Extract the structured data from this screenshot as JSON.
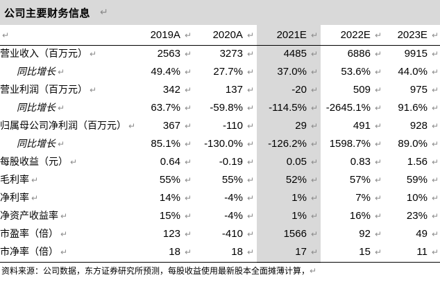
{
  "title": "公司主要财务信息",
  "mark": "↵",
  "header_mark": "↵",
  "columns": [
    "2019A",
    "2020A",
    "2021E",
    "2022E",
    "2023E"
  ],
  "rows": [
    {
      "label": "营业收入（百万元）",
      "sub": false,
      "values": [
        "2563",
        "3273",
        "4485",
        "6886",
        "9915"
      ]
    },
    {
      "label": "同比增长",
      "sub": true,
      "values": [
        "49.4%",
        "27.7%",
        "37.0%",
        "53.6%",
        "44.0%"
      ]
    },
    {
      "label": "营业利润（百万元）",
      "sub": false,
      "values": [
        "342",
        "137",
        "-20",
        "509",
        "975"
      ]
    },
    {
      "label": "同比增长",
      "sub": true,
      "values": [
        "63.7%",
        "-59.8%",
        "-114.5%",
        "-2645.1%",
        "91.6%"
      ]
    },
    {
      "label": "归属母公司净利润（百万元）",
      "sub": false,
      "values": [
        "367",
        "-110",
        "29",
        "491",
        "928"
      ]
    },
    {
      "label": "同比增长",
      "sub": true,
      "values": [
        "85.1%",
        "-130.0%",
        "-126.2%",
        "1598.7%",
        "89.0%"
      ]
    },
    {
      "label": "每股收益（元）",
      "sub": false,
      "values": [
        "0.64",
        "-0.19",
        "0.05",
        "0.83",
        "1.56"
      ]
    },
    {
      "label": "毛利率",
      "sub": false,
      "values": [
        "55%",
        "55%",
        "52%",
        "57%",
        "59%"
      ]
    },
    {
      "label": "净利率",
      "sub": false,
      "values": [
        "14%",
        "-4%",
        "1%",
        "7%",
        "10%"
      ]
    },
    {
      "label": "净资产收益率",
      "sub": false,
      "values": [
        "15%",
        "-4%",
        "1%",
        "16%",
        "23%"
      ]
    },
    {
      "label": "市盈率（倍）",
      "sub": false,
      "values": [
        "123",
        "-410",
        "1566",
        "92",
        "49"
      ]
    },
    {
      "label": "市净率（倍）",
      "sub": false,
      "values": [
        "18",
        "18",
        "17",
        "15",
        "11"
      ]
    }
  ],
  "footer": "资料来源：公司数据，东方证券研究所预测，每股收益使用最新股本全面摊薄计算，"
}
